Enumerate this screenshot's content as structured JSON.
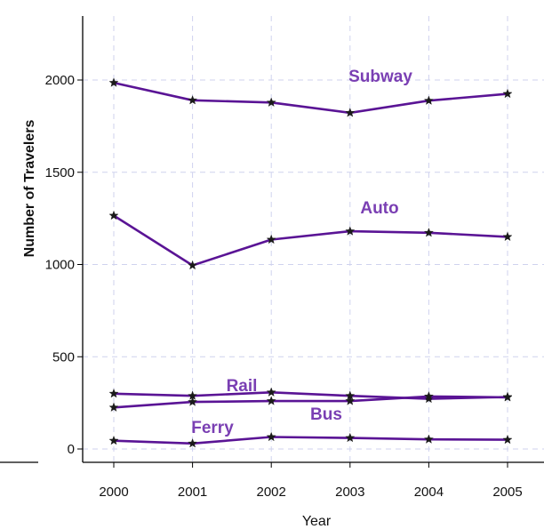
{
  "chart_data": {
    "type": "line",
    "xlabel": "Year",
    "ylabel": "Number of Travelers",
    "x": [
      2000,
      2001,
      2002,
      2003,
      2004,
      2005
    ],
    "ylim": [
      -100,
      2250
    ],
    "yticks": [
      0,
      500,
      1000,
      1500,
      2000
    ],
    "grid": true,
    "line_color": "#5a1495",
    "label_color": "#7a3fb3",
    "marker": "star",
    "series": [
      {
        "name": "Subway",
        "values": [
          1985,
          1890,
          1878,
          1822,
          1888,
          1925
        ]
      },
      {
        "name": "Auto",
        "values": [
          1265,
          995,
          1135,
          1180,
          1172,
          1150
        ]
      },
      {
        "name": "Rail",
        "values": [
          300,
          288,
          307,
          288,
          272,
          282
        ]
      },
      {
        "name": "Bus",
        "values": [
          225,
          255,
          260,
          260,
          285,
          280
        ]
      },
      {
        "name": "Ferry",
        "values": [
          45,
          30,
          65,
          60,
          52,
          50
        ]
      }
    ]
  }
}
